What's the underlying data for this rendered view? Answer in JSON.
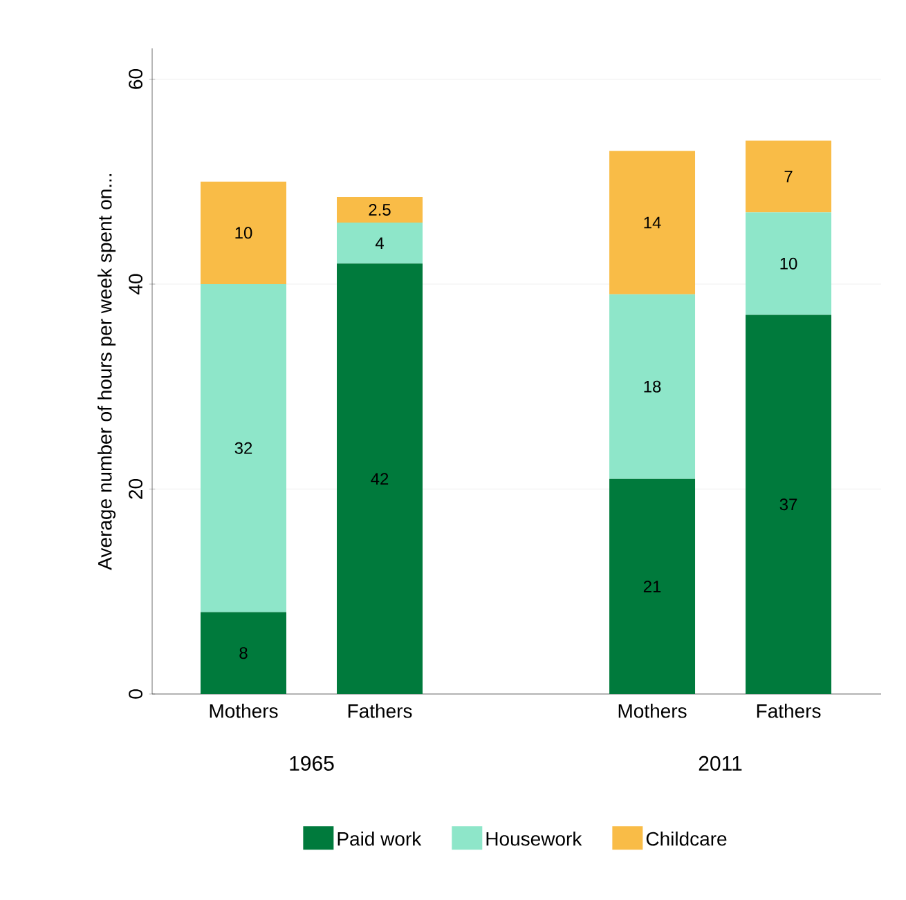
{
  "chart_data": {
    "type": "bar",
    "stacked": true,
    "ylabel": "Average number of hours per week spent on...",
    "categories": [
      "Mothers",
      "Fathers",
      null,
      "Mothers",
      "Fathers"
    ],
    "annotations": [
      "1965",
      "2011"
    ],
    "series": [
      {
        "name": "Paid work",
        "color": "#007a3c",
        "values": [
          8,
          42,
          null,
          21,
          37
        ],
        "value_labels": [
          "8",
          "42",
          null,
          "21",
          "37"
        ]
      },
      {
        "name": "Housework",
        "color": "#8ee6c9",
        "values": [
          32,
          4,
          null,
          18,
          10
        ],
        "value_labels": [
          "32",
          "4",
          null,
          "18",
          "10"
        ]
      },
      {
        "name": "Childcare",
        "color": "#f9bc47",
        "values": [
          10,
          2.5,
          null,
          14,
          7
        ],
        "value_labels": [
          "10",
          "2.5",
          null,
          "14",
          "7"
        ]
      }
    ],
    "ylim": [
      0,
      63
    ],
    "yticks": [
      0,
      20,
      40,
      60
    ],
    "grid": "y",
    "legend": "bottom"
  }
}
